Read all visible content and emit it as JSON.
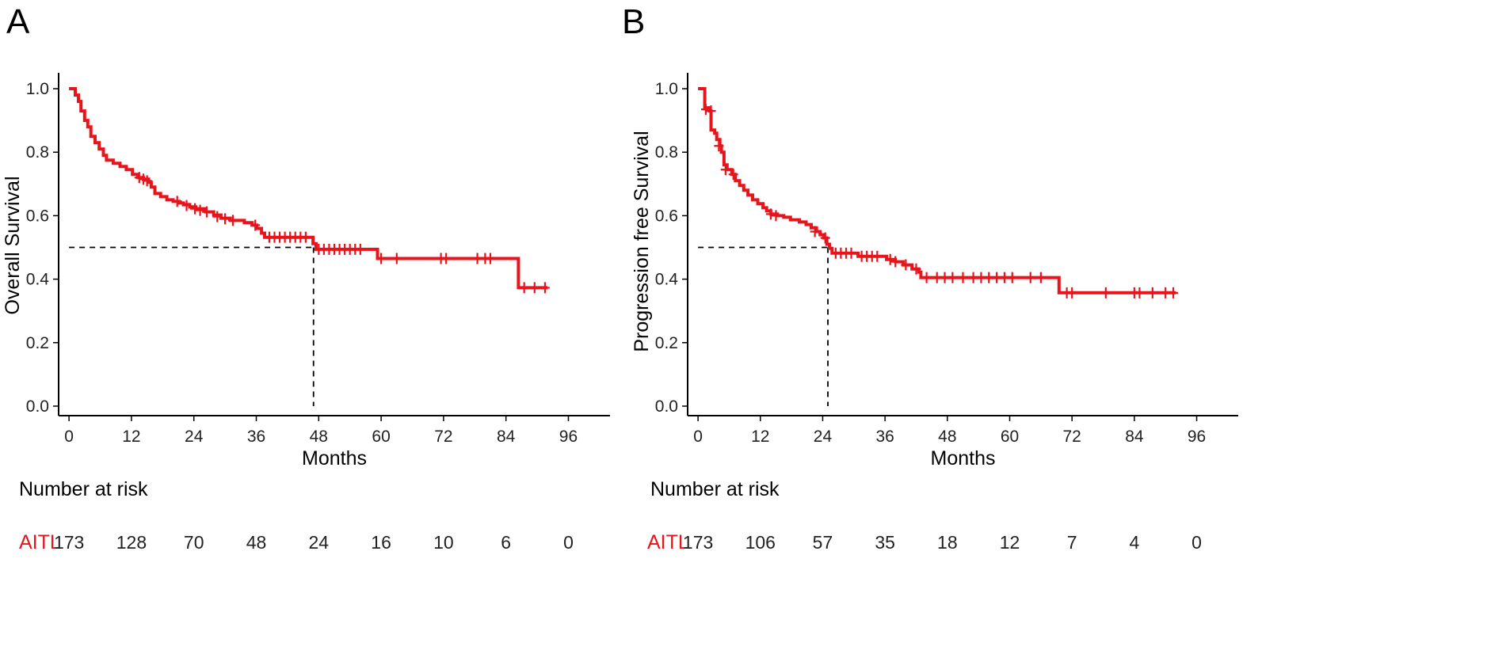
{
  "chart_data": [
    {
      "panel_label": "A",
      "type": "line",
      "subtype": "kaplan-meier",
      "ylabel": "Overall Survival",
      "xlabel": "Months",
      "xlim": [
        -2,
        104
      ],
      "ylim": [
        -0.03,
        1.05
      ],
      "xticks": [
        0,
        12,
        24,
        36,
        48,
        60,
        72,
        84,
        96
      ],
      "yticks": [
        0.0,
        0.2,
        0.4,
        0.6,
        0.8,
        1.0
      ],
      "ytick_labels": [
        "0.0",
        "0.2",
        "0.4",
        "0.6",
        "0.8",
        "1.0"
      ],
      "color": "#e8141c",
      "curve": [
        [
          0,
          1.0
        ],
        [
          0.8,
          1.0
        ],
        [
          1.2,
          0.98
        ],
        [
          1.8,
          0.96
        ],
        [
          2.3,
          0.93
        ],
        [
          3.0,
          0.9
        ],
        [
          3.6,
          0.88
        ],
        [
          4.2,
          0.85
        ],
        [
          5.0,
          0.83
        ],
        [
          5.8,
          0.81
        ],
        [
          6.6,
          0.79
        ],
        [
          7.2,
          0.775
        ],
        [
          8.5,
          0.765
        ],
        [
          9.8,
          0.755
        ],
        [
          11.0,
          0.745
        ],
        [
          12.2,
          0.73
        ],
        [
          13.2,
          0.72
        ],
        [
          14.3,
          0.715
        ],
        [
          15.3,
          0.705
        ],
        [
          15.8,
          0.69
        ],
        [
          16.5,
          0.67
        ],
        [
          17.6,
          0.66
        ],
        [
          18.8,
          0.65
        ],
        [
          20.0,
          0.645
        ],
        [
          21.2,
          0.64
        ],
        [
          22.0,
          0.635
        ],
        [
          23.2,
          0.628
        ],
        [
          24.4,
          0.622
        ],
        [
          26.3,
          0.612
        ],
        [
          27.8,
          0.602
        ],
        [
          29.2,
          0.592
        ],
        [
          31.0,
          0.585
        ],
        [
          33.7,
          0.578
        ],
        [
          35.2,
          0.57
        ],
        [
          36.1,
          0.56
        ],
        [
          37.0,
          0.545
        ],
        [
          37.6,
          0.532
        ],
        [
          46.4,
          0.532
        ],
        [
          46.9,
          0.512
        ],
        [
          47.5,
          0.494
        ],
        [
          58.8,
          0.494
        ],
        [
          59.3,
          0.465
        ],
        [
          86.0,
          0.465
        ],
        [
          86.4,
          0.373
        ],
        [
          92.0,
          0.373
        ]
      ],
      "censor": [
        [
          13.5,
          0.72
        ],
        [
          14.3,
          0.715
        ],
        [
          15.0,
          0.71
        ],
        [
          20.8,
          0.645
        ],
        [
          22.6,
          0.632
        ],
        [
          24.2,
          0.622
        ],
        [
          25.2,
          0.617
        ],
        [
          26.5,
          0.612
        ],
        [
          28.5,
          0.597
        ],
        [
          30.0,
          0.59
        ],
        [
          31.5,
          0.585
        ],
        [
          35.8,
          0.57
        ],
        [
          38.5,
          0.532
        ],
        [
          39.5,
          0.532
        ],
        [
          40.5,
          0.532
        ],
        [
          41.5,
          0.532
        ],
        [
          42.5,
          0.532
        ],
        [
          43.5,
          0.532
        ],
        [
          44.5,
          0.532
        ],
        [
          45.5,
          0.532
        ],
        [
          48.0,
          0.494
        ],
        [
          49.0,
          0.494
        ],
        [
          50.0,
          0.494
        ],
        [
          51.0,
          0.494
        ],
        [
          52.0,
          0.494
        ],
        [
          53.0,
          0.494
        ],
        [
          54.0,
          0.494
        ],
        [
          55.0,
          0.494
        ],
        [
          56.0,
          0.494
        ],
        [
          60.0,
          0.465
        ],
        [
          63.0,
          0.465
        ],
        [
          71.5,
          0.465
        ],
        [
          72.5,
          0.465
        ],
        [
          78.5,
          0.465
        ],
        [
          80.0,
          0.465
        ],
        [
          81.0,
          0.465
        ],
        [
          87.5,
          0.373
        ],
        [
          89.5,
          0.373
        ],
        [
          91.5,
          0.373
        ]
      ],
      "median_guide": {
        "x": 47,
        "y": 0.5
      },
      "risk_table": {
        "title": "Number at risk",
        "strata_label": "AITL",
        "counts": [
          "173",
          "128",
          "70",
          "48",
          "24",
          "16",
          "10",
          "6",
          "0"
        ]
      }
    },
    {
      "panel_label": "B",
      "type": "line",
      "subtype": "kaplan-meier",
      "ylabel": "Progression free Survival",
      "xlabel": "Months",
      "xlim": [
        -2,
        104
      ],
      "ylim": [
        -0.03,
        1.05
      ],
      "xticks": [
        0,
        12,
        24,
        36,
        48,
        60,
        72,
        84,
        96
      ],
      "yticks": [
        0.0,
        0.2,
        0.4,
        0.6,
        0.8,
        1.0
      ],
      "ytick_labels": [
        "0.0",
        "0.2",
        "0.4",
        "0.6",
        "0.8",
        "1.0"
      ],
      "color": "#e8141c",
      "curve": [
        [
          0,
          1.0
        ],
        [
          1.0,
          1.0
        ],
        [
          1.3,
          0.94
        ],
        [
          2.2,
          0.93
        ],
        [
          2.5,
          0.87
        ],
        [
          3.2,
          0.86
        ],
        [
          3.6,
          0.84
        ],
        [
          4.2,
          0.82
        ],
        [
          4.5,
          0.8
        ],
        [
          5.0,
          0.76
        ],
        [
          5.6,
          0.745
        ],
        [
          6.5,
          0.73
        ],
        [
          7.2,
          0.71
        ],
        [
          8.0,
          0.695
        ],
        [
          8.8,
          0.68
        ],
        [
          9.6,
          0.665
        ],
        [
          10.5,
          0.65
        ],
        [
          11.5,
          0.638
        ],
        [
          12.5,
          0.625
        ],
        [
          13.2,
          0.615
        ],
        [
          14.0,
          0.605
        ],
        [
          15.3,
          0.6
        ],
        [
          16.5,
          0.595
        ],
        [
          17.8,
          0.587
        ],
        [
          19.5,
          0.58
        ],
        [
          20.8,
          0.572
        ],
        [
          21.8,
          0.562
        ],
        [
          22.8,
          0.55
        ],
        [
          23.5,
          0.54
        ],
        [
          24.2,
          0.53
        ],
        [
          24.8,
          0.51
        ],
        [
          25.3,
          0.497
        ],
        [
          25.8,
          0.482
        ],
        [
          30.3,
          0.482
        ],
        [
          30.8,
          0.472
        ],
        [
          35.5,
          0.472
        ],
        [
          36.3,
          0.462
        ],
        [
          38.0,
          0.455
        ],
        [
          39.5,
          0.445
        ],
        [
          41.2,
          0.432
        ],
        [
          42.5,
          0.422
        ],
        [
          42.9,
          0.405
        ],
        [
          69.0,
          0.405
        ],
        [
          69.5,
          0.357
        ],
        [
          92.0,
          0.357
        ]
      ],
      "censor": [
        [
          1.5,
          0.935
        ],
        [
          2.5,
          0.93
        ],
        [
          4.0,
          0.82
        ],
        [
          5.3,
          0.745
        ],
        [
          6.8,
          0.73
        ],
        [
          14.0,
          0.605
        ],
        [
          15.0,
          0.6
        ],
        [
          22.5,
          0.55
        ],
        [
          24.5,
          0.53
        ],
        [
          26.5,
          0.482
        ],
        [
          27.5,
          0.482
        ],
        [
          28.5,
          0.482
        ],
        [
          29.5,
          0.482
        ],
        [
          31.5,
          0.472
        ],
        [
          32.5,
          0.472
        ],
        [
          33.5,
          0.472
        ],
        [
          34.5,
          0.472
        ],
        [
          37.0,
          0.462
        ],
        [
          38.0,
          0.455
        ],
        [
          40.0,
          0.445
        ],
        [
          42.0,
          0.432
        ],
        [
          44.0,
          0.405
        ],
        [
          46.0,
          0.405
        ],
        [
          47.5,
          0.405
        ],
        [
          49.0,
          0.405
        ],
        [
          51.0,
          0.405
        ],
        [
          53.0,
          0.405
        ],
        [
          54.5,
          0.405
        ],
        [
          56.0,
          0.405
        ],
        [
          57.5,
          0.405
        ],
        [
          59.0,
          0.405
        ],
        [
          60.5,
          0.405
        ],
        [
          64.0,
          0.405
        ],
        [
          66.0,
          0.405
        ],
        [
          71.0,
          0.357
        ],
        [
          72.0,
          0.357
        ],
        [
          78.5,
          0.357
        ],
        [
          84.0,
          0.357
        ],
        [
          85.0,
          0.357
        ],
        [
          87.5,
          0.357
        ],
        [
          90.0,
          0.357
        ],
        [
          91.5,
          0.357
        ]
      ],
      "median_guide": {
        "x": 25,
        "y": 0.5
      },
      "risk_table": {
        "title": "Number at risk",
        "strata_label": "AITL",
        "counts": [
          "173",
          "106",
          "57",
          "35",
          "18",
          "12",
          "7",
          "4",
          "0"
        ]
      }
    }
  ]
}
